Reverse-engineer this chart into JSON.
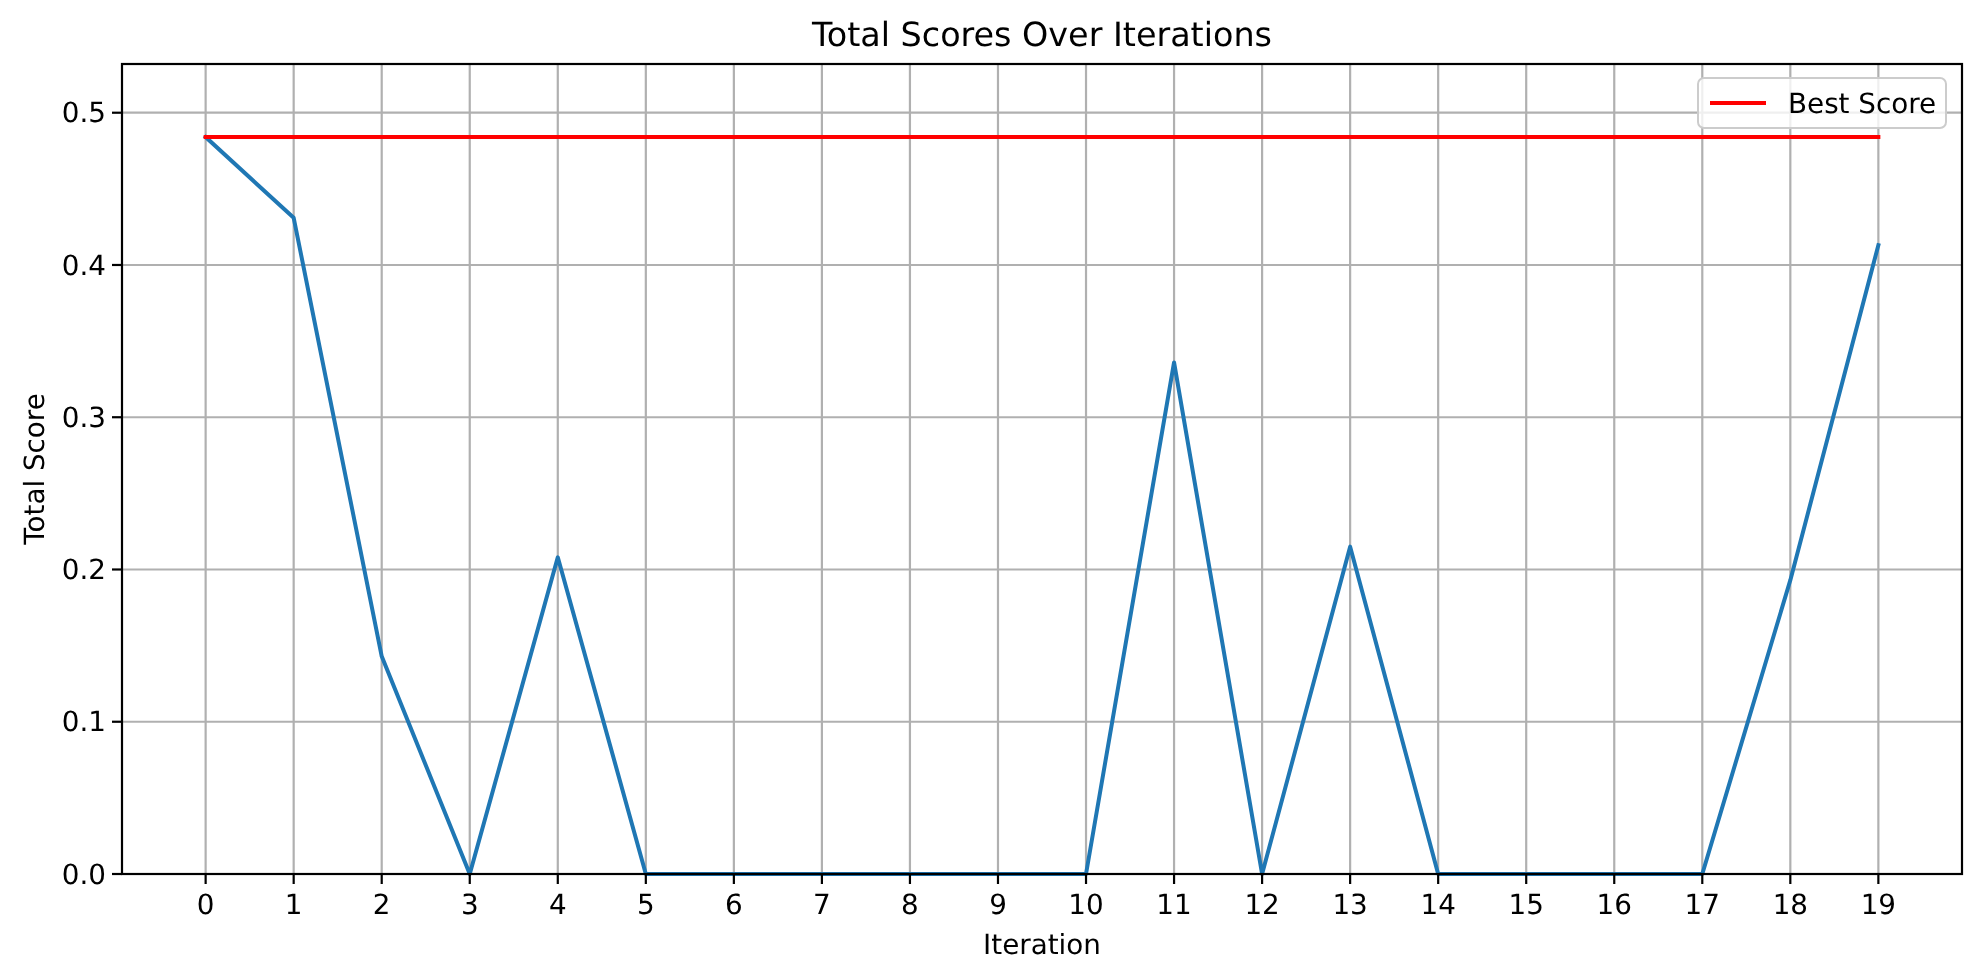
{
  "chart_data": {
    "type": "line",
    "title": "Total Scores Over Iterations",
    "xlabel": "Iteration",
    "ylabel": "Total Score",
    "x": [
      0,
      1,
      2,
      3,
      4,
      5,
      6,
      7,
      8,
      9,
      10,
      11,
      12,
      13,
      14,
      15,
      16,
      17,
      18,
      19
    ],
    "series": [
      {
        "color": "#1f77b4",
        "values": [
          0.484,
          0.431,
          0.143,
          0,
          0.208,
          0,
          0,
          0,
          0,
          0,
          0,
          0.336,
          0,
          0.215,
          0,
          0,
          0,
          0,
          0.193,
          0.413
        ]
      },
      {
        "name": "Best Score",
        "color": "#ff0000",
        "values": [
          0.484,
          0.484,
          0.484,
          0.484,
          0.484,
          0.484,
          0.484,
          0.484,
          0.484,
          0.484,
          0.484,
          0.484,
          0.484,
          0.484,
          0.484,
          0.484,
          0.484,
          0.484,
          0.484,
          0.484
        ]
      }
    ],
    "xlim": [
      -0.95,
      19.95
    ],
    "xticks": [
      0,
      1,
      2,
      3,
      4,
      5,
      6,
      7,
      8,
      9,
      10,
      11,
      12,
      13,
      14,
      15,
      16,
      17,
      18,
      19
    ],
    "ylim": [
      0,
      0.532
    ],
    "yticks": [
      {
        "value": 0,
        "label": "0.0"
      },
      0.1,
      0.2,
      0.3,
      0.4,
      0.5
    ],
    "grid": true,
    "legend": "top right"
  }
}
